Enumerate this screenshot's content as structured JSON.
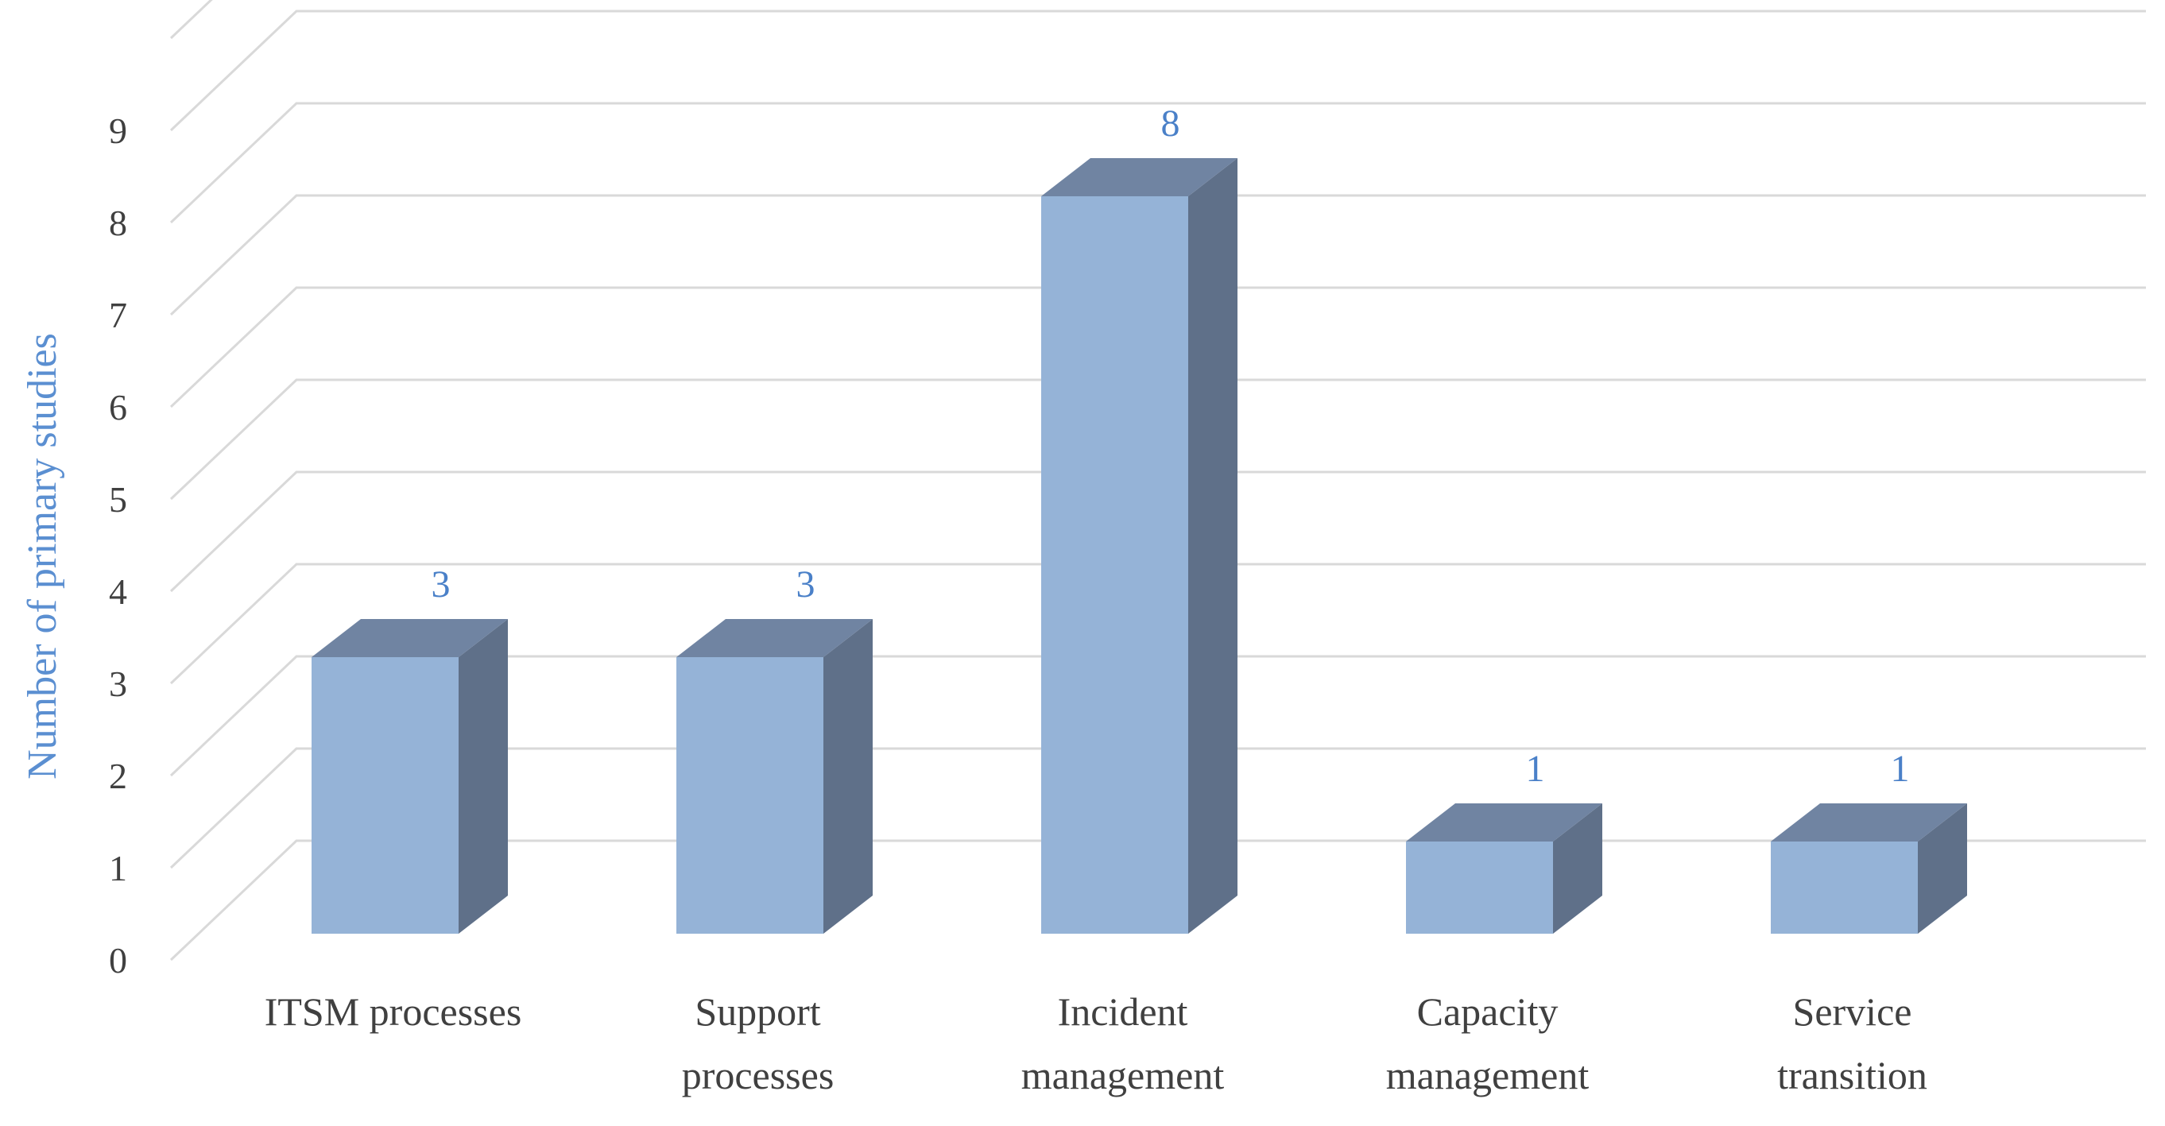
{
  "chart_data": {
    "type": "bar",
    "title": "",
    "xlabel": "",
    "ylabel": "Number of primary studies",
    "ylim": [
      0,
      9
    ],
    "yticks": [
      0,
      1,
      2,
      3,
      4,
      5,
      6,
      7,
      8,
      9
    ],
    "grid": true,
    "categories": [
      [
        "ITSM processes"
      ],
      [
        "Support",
        "processes"
      ],
      [
        "Incident",
        "management"
      ],
      [
        "Capacity",
        "management"
      ],
      [
        "Service",
        "transition"
      ]
    ],
    "values": [
      3,
      3,
      8,
      1,
      1
    ],
    "data_labels": [
      "3",
      "3",
      "8",
      "1",
      "1"
    ],
    "colors": {
      "bar_front": "#95b3d7",
      "bar_top": "#7084a2",
      "bar_side": "#5f7089",
      "data_label": "#4a80c8",
      "axis_label": "#5b8fd1"
    }
  }
}
